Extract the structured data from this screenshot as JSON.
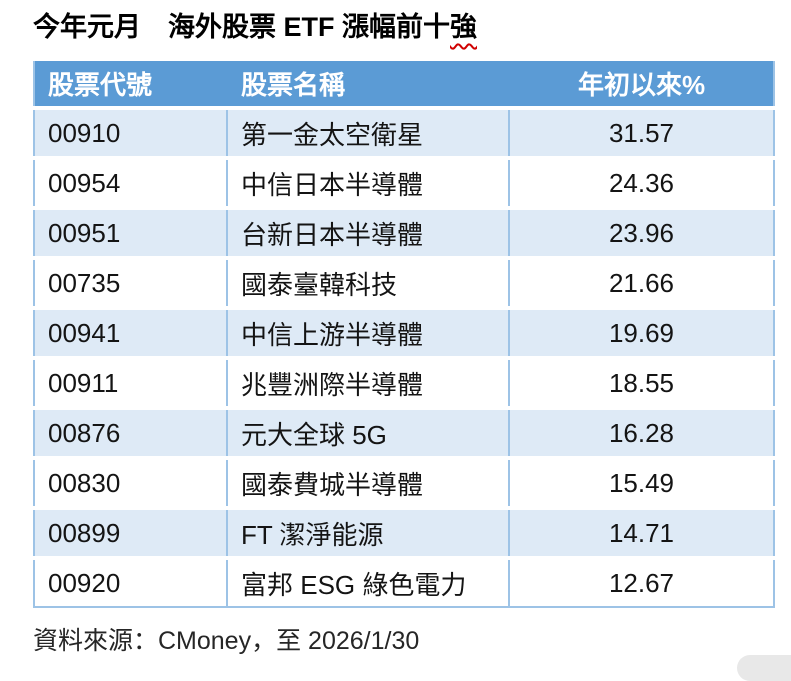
{
  "title": {
    "main": "今年元月　海外股票 ETF 漲幅前十",
    "spellcheck_word": "強"
  },
  "table": {
    "columns": [
      "股票代號",
      "股票名稱",
      "年初以來%"
    ],
    "rows": [
      {
        "code": "00910",
        "name": "第一金太空衛星",
        "ytd": "31.57"
      },
      {
        "code": "00954",
        "name": "中信日本半導體",
        "ytd": "24.36"
      },
      {
        "code": "00951",
        "name": "台新日本半導體",
        "ytd": "23.96"
      },
      {
        "code": "00735",
        "name": "國泰臺韓科技",
        "ytd": "21.66"
      },
      {
        "code": "00941",
        "name": "中信上游半導體",
        "ytd": "19.69"
      },
      {
        "code": "00911",
        "name": "兆豐洲際半導體",
        "ytd": "18.55"
      },
      {
        "code": "00876",
        "name": "元大全球 5G",
        "ytd": "16.28"
      },
      {
        "code": "00830",
        "name": "國泰費城半導體",
        "ytd": "15.49"
      },
      {
        "code": "00899",
        "name": "FT 潔淨能源",
        "ytd": "14.71"
      },
      {
        "code": "00920",
        "name": "富邦 ESG 綠色電力",
        "ytd": "12.67"
      }
    ]
  },
  "footer": {
    "source_note": "資料來源：CMoney，至 2026/1/30"
  },
  "colors": {
    "header_bg": "#5B9BD5",
    "header_text": "#FFFFFF",
    "band_row_bg": "#DEEAF6",
    "grid_border": "#9DC3E6",
    "spellcheck_underline": "#D00000",
    "corner_thumb": "#E8E8E8"
  }
}
